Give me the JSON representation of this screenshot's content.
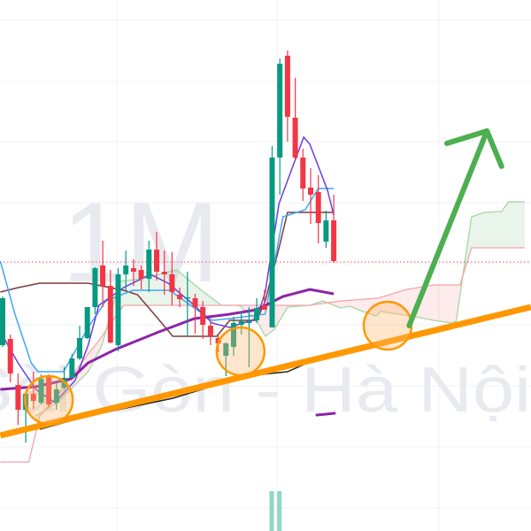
{
  "watermark": {
    "interval": "1M",
    "exchange": "Sài Gòn - Hà Nội"
  },
  "colors": {
    "up": "#089981",
    "down": "#f23645",
    "grid": "#f0f1f4",
    "conversion_line": "#6a3de8",
    "base_line": "#7b3b3b",
    "fast_line": "#42a5f5",
    "moving_average": "#8e24aa",
    "long_average": "#222222",
    "span_a": "#a5d6a7",
    "span_b": "#f4a5ae",
    "cloud_up": "rgba(76,175,80,0.12)",
    "cloud_down": "rgba(242,54,69,0.10)",
    "trendline": "#ff9800",
    "arrow": "#4caf50",
    "price_line": "#e5535f",
    "volume": "#8fd6c5"
  },
  "chart_data": {
    "type": "candlestick",
    "title": "",
    "xlabel": "",
    "ylabel": "",
    "grid": true,
    "price_scale": "relative (no axis labels visible)",
    "candles": [
      [
        210,
        265,
        208,
        263
      ],
      [
        217,
        222,
        168,
        178
      ],
      [
        165,
        178,
        120,
        137
      ],
      [
        137,
        155,
        100,
        155
      ],
      [
        155,
        180,
        138,
        147
      ],
      [
        145,
        177,
        143,
        172
      ],
      [
        175,
        177,
        140,
        143
      ],
      [
        145,
        168,
        137,
        160
      ],
      [
        162,
        185,
        160,
        173
      ],
      [
        173,
        200,
        173,
        195
      ],
      [
        195,
        232,
        193,
        218
      ],
      [
        218,
        253,
        217,
        253
      ],
      [
        253,
        298,
        245,
        297
      ],
      [
        300,
        328,
        253,
        277
      ],
      [
        277,
        295,
        212,
        213
      ],
      [
        210,
        297,
        203,
        290
      ],
      [
        290,
        317,
        272,
        300
      ],
      [
        297,
        307,
        277,
        293
      ],
      [
        295,
        300,
        273,
        285
      ],
      [
        285,
        328,
        270,
        318
      ],
      [
        318,
        338,
        283,
        293
      ],
      [
        293,
        317,
        267,
        290
      ],
      [
        290,
        315,
        255,
        270
      ],
      [
        267,
        275,
        253,
        262
      ],
      [
        263,
        293,
        220,
        264
      ],
      [
        263,
        268,
        223,
        253
      ],
      [
        253,
        260,
        217,
        233
      ],
      [
        232,
        237,
        210,
        220
      ],
      [
        218,
        222,
        202,
        212
      ],
      [
        198,
        213,
        175,
        212
      ],
      [
        208,
        242,
        198,
        235
      ],
      [
        233,
        248,
        222,
        237
      ],
      [
        235,
        253,
        185,
        237
      ],
      [
        238,
        263,
        235,
        252
      ],
      [
        255,
        272,
        250,
        250
      ],
      [
        230,
        435,
        230,
        422
      ],
      [
        422,
        534,
        380,
        528
      ],
      [
        537,
        543,
        440,
        468
      ],
      [
        467,
        512,
        418,
        422
      ],
      [
        422,
        432,
        373,
        387
      ],
      [
        388,
        410,
        347,
        380
      ],
      [
        383,
        402,
        325,
        348
      ],
      [
        327,
        362,
        320,
        351
      ],
      [
        351,
        380,
        303,
        305
      ]
    ],
    "candle_format": [
      "open",
      "high",
      "low",
      "close"
    ],
    "last_price_line": 304,
    "lines": {
      "fast_line": [
        [
          -0.3,
          305
        ],
        [
          1.6,
          245
        ],
        [
          3.7,
          190
        ],
        [
          4.6,
          180
        ],
        [
          7.9,
          180
        ],
        [
          9.4,
          203
        ],
        [
          11.1,
          230
        ],
        [
          13.4,
          260
        ],
        [
          16.9,
          272
        ],
        [
          21.7,
          272
        ],
        [
          24.4,
          255
        ],
        [
          27.2,
          238
        ],
        [
          29.5,
          240
        ],
        [
          34.1,
          245
        ],
        [
          36.4,
          355
        ],
        [
          39.3,
          363
        ],
        [
          41,
          387
        ],
        [
          43,
          387
        ]
      ],
      "conversion_line": [
        [
          -0.3,
          225
        ],
        [
          2,
          190
        ],
        [
          4.3,
          160
        ],
        [
          6.8,
          145
        ],
        [
          9.4,
          170
        ],
        [
          11.1,
          210
        ],
        [
          12.5,
          255
        ],
        [
          15.7,
          275
        ],
        [
          19.2,
          290
        ],
        [
          21.5,
          280
        ],
        [
          24.9,
          255
        ],
        [
          27.2,
          235
        ],
        [
          29.5,
          230
        ],
        [
          33,
          240
        ],
        [
          34.1,
          270
        ],
        [
          35.9,
          370
        ],
        [
          37.6,
          410
        ],
        [
          39.1,
          445
        ],
        [
          39.9,
          437
        ],
        [
          42.2,
          385
        ],
        [
          43,
          357
        ]
      ],
      "base_line": [
        [
          -0.3,
          270
        ],
        [
          2,
          275
        ],
        [
          4.8,
          280
        ],
        [
          11.1,
          280
        ],
        [
          15.7,
          272
        ],
        [
          17.5,
          267
        ],
        [
          19.2,
          250
        ],
        [
          22.1,
          220
        ],
        [
          27.8,
          220
        ],
        [
          29.5,
          238
        ],
        [
          33,
          238
        ],
        [
          34.1,
          260
        ],
        [
          35.9,
          320
        ],
        [
          37,
          360
        ],
        [
          43,
          360
        ]
      ],
      "moving_average": [
        [
          -0.3,
          160
        ],
        [
          4.3,
          163
        ],
        [
          8.9,
          172
        ],
        [
          11.1,
          190
        ],
        [
          14.6,
          205
        ],
        [
          20.3,
          225
        ],
        [
          24.9,
          240
        ],
        [
          29.5,
          245
        ],
        [
          33,
          250
        ],
        [
          36.4,
          265
        ],
        [
          39.9,
          273
        ],
        [
          43,
          268
        ]
      ],
      "long_average": [
        [
          4.8,
          115
        ],
        [
          11.1,
          130
        ],
        [
          22.1,
          150
        ],
        [
          31.5,
          175
        ],
        [
          37,
          180
        ],
        [
          42.2,
          200
        ]
      ]
    },
    "cloud": {
      "span_a": [
        [
          4.3,
          130
        ],
        [
          7.1,
          145
        ],
        [
          11.1,
          180
        ],
        [
          12.9,
          210
        ],
        [
          15.2,
          282
        ],
        [
          18,
          285
        ],
        [
          22.6,
          295
        ],
        [
          26.1,
          270
        ],
        [
          28.4,
          255
        ],
        [
          30.7,
          255
        ],
        [
          33,
          238
        ],
        [
          34.1,
          220
        ],
        [
          35.3,
          228
        ],
        [
          37,
          253
        ],
        [
          39.9,
          255
        ],
        [
          41.6,
          260
        ],
        [
          43.9,
          252
        ],
        [
          45.1,
          254
        ],
        [
          46.8,
          248
        ],
        [
          48.5,
          243
        ],
        [
          49.1,
          248
        ],
        [
          51.4,
          245
        ],
        [
          53.7,
          242
        ],
        [
          56,
          238
        ],
        [
          58.3,
          235
        ],
        [
          58.9,
          237
        ],
        [
          60.9,
          355
        ],
        [
          62.5,
          360
        ],
        [
          64.8,
          361
        ],
        [
          65.7,
          372
        ],
        [
          67.8,
          372
        ]
      ],
      "span_b": [
        [
          -0.3,
          78
        ],
        [
          3.4,
          78
        ],
        [
          4.8,
          130
        ],
        [
          6.4,
          145
        ],
        [
          11.1,
          200
        ],
        [
          12.5,
          215
        ],
        [
          15.7,
          255
        ],
        [
          39.9,
          255
        ],
        [
          43.9,
          260
        ],
        [
          48.7,
          263
        ],
        [
          52.5,
          273
        ],
        [
          56,
          278
        ],
        [
          59.4,
          278
        ],
        [
          60.9,
          320
        ],
        [
          67.8,
          320
        ]
      ]
    },
    "volume": [
      {
        "bar": 35,
        "level": 1
      },
      {
        "bar": 36,
        "level": 1
      }
    ],
    "annotations": {
      "trendline": [
        [
          -0.3,
          108
        ],
        [
          68.6,
          253
        ]
      ],
      "circles": [
        [
          6,
          148
        ],
        [
          30.9,
          203
        ],
        [
          50,
          232
        ]
      ],
      "arrow": {
        "from": [
          52.8,
          232
        ],
        "to": [
          62.9,
          452
        ],
        "head": [
          [
            57.7,
            438
          ],
          [
            64.8,
            412
          ]
        ]
      },
      "dash": [
        [
          40.8,
          131
        ],
        [
          43.1,
          133
        ]
      ]
    }
  }
}
